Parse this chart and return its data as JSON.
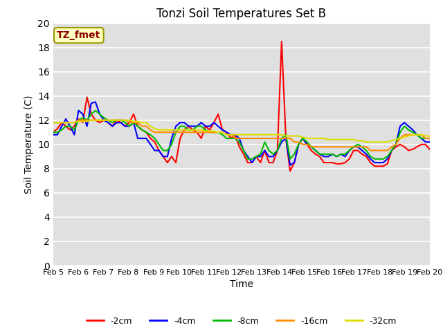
{
  "title": "Tonzi Soil Temperatures Set B",
  "xlabel": "Time",
  "ylabel": "Soil Temperature (C)",
  "ylim": [
    0,
    20
  ],
  "xlim": [
    0,
    15
  ],
  "xtick_labels": [
    "Feb 5",
    "Feb 6",
    "Feb 7",
    "Feb 8",
    "Feb 9",
    "Feb 10",
    "Feb 11",
    "Feb 12",
    "Feb 13",
    "Feb 14",
    "Feb 15",
    "Feb 16",
    "Feb 17",
    "Feb 18",
    "Feb 19",
    "Feb 20"
  ],
  "annotation_text": "TZ_fmet",
  "annotation_color": "#8B0000",
  "annotation_bg": "#FFFFC0",
  "bg_color": "#E0E0E0",
  "series": {
    "2cm": {
      "color": "#FF0000",
      "label": "-2cm",
      "values": [
        11.0,
        11.3,
        11.8,
        11.5,
        11.2,
        11.5,
        12.1,
        11.8,
        13.9,
        12.5,
        12.0,
        11.8,
        12.0,
        11.8,
        11.5,
        12.0,
        11.8,
        11.5,
        11.8,
        12.5,
        11.5,
        11.2,
        11.0,
        10.5,
        10.2,
        9.5,
        9.0,
        8.5,
        9.0,
        8.5,
        10.5,
        11.2,
        11.5,
        11.2,
        11.0,
        10.5,
        11.5,
        11.2,
        11.8,
        12.5,
        11.2,
        11.0,
        10.5,
        10.8,
        9.8,
        9.2,
        8.5,
        8.5,
        9.0,
        8.5,
        9.5,
        8.5,
        8.5,
        9.5,
        18.5,
        10.5,
        7.8,
        8.5,
        10.0,
        10.5,
        10.0,
        9.5,
        9.2,
        9.0,
        8.5,
        8.5,
        8.5,
        8.4,
        8.4,
        8.5,
        8.8,
        9.5,
        9.5,
        9.2,
        9.0,
        8.5,
        8.2,
        8.2,
        8.2,
        8.4,
        9.5,
        9.8,
        10.0,
        9.8,
        9.5,
        9.6,
        9.8,
        10.0,
        10.0,
        9.6
      ]
    },
    "4cm": {
      "color": "#0000FF",
      "label": "-4cm",
      "values": [
        10.8,
        10.8,
        11.5,
        12.1,
        11.5,
        10.8,
        12.8,
        12.5,
        11.5,
        13.4,
        13.5,
        12.5,
        12.0,
        11.8,
        11.5,
        11.8,
        11.8,
        11.5,
        11.5,
        11.8,
        10.5,
        10.5,
        10.5,
        10.0,
        9.5,
        9.5,
        9.0,
        9.0,
        10.5,
        11.5,
        11.8,
        11.8,
        11.5,
        11.5,
        11.5,
        11.8,
        11.5,
        11.5,
        11.8,
        11.5,
        11.2,
        11.0,
        10.8,
        10.8,
        10.5,
        9.5,
        9.0,
        8.5,
        9.0,
        9.0,
        9.5,
        9.0,
        9.0,
        9.5,
        10.2,
        10.5,
        8.3,
        8.5,
        10.0,
        10.5,
        10.0,
        9.8,
        9.5,
        9.2,
        9.0,
        9.0,
        9.2,
        9.0,
        9.2,
        9.0,
        9.5,
        9.8,
        9.8,
        9.5,
        9.2,
        8.8,
        8.5,
        8.5,
        8.5,
        8.8,
        9.5,
        10.0,
        11.5,
        11.8,
        11.5,
        11.2,
        10.8,
        10.5,
        10.2,
        10.2
      ]
    },
    "8cm": {
      "color": "#00BB00",
      "label": "-8cm",
      "values": [
        11.0,
        11.0,
        11.2,
        11.5,
        11.5,
        11.2,
        12.0,
        12.2,
        12.0,
        12.5,
        12.8,
        12.5,
        12.2,
        12.0,
        11.8,
        12.0,
        12.0,
        11.8,
        11.5,
        11.8,
        11.5,
        11.2,
        11.0,
        10.8,
        10.5,
        10.0,
        9.5,
        9.5,
        10.0,
        11.0,
        11.5,
        11.5,
        11.2,
        11.2,
        11.5,
        11.5,
        11.2,
        11.0,
        11.0,
        11.0,
        10.8,
        10.5,
        10.5,
        10.5,
        10.2,
        9.5,
        8.8,
        8.8,
        9.0,
        9.2,
        10.2,
        9.5,
        9.2,
        9.5,
        10.5,
        10.8,
        8.8,
        9.2,
        10.0,
        10.5,
        10.2,
        9.8,
        9.5,
        9.2,
        9.2,
        9.2,
        9.2,
        9.0,
        9.2,
        9.2,
        9.5,
        9.8,
        10.0,
        9.8,
        9.5,
        9.0,
        8.8,
        8.8,
        8.8,
        9.0,
        9.5,
        10.0,
        11.0,
        11.5,
        11.2,
        11.0,
        10.8,
        10.5,
        10.5,
        10.5
      ]
    },
    "16cm": {
      "color": "#FF8C00",
      "label": "-16cm",
      "values": [
        11.8,
        11.8,
        11.8,
        11.8,
        11.8,
        11.8,
        12.0,
        12.0,
        12.0,
        12.0,
        12.0,
        12.0,
        12.0,
        12.0,
        12.0,
        12.0,
        12.0,
        12.0,
        11.8,
        11.8,
        11.8,
        11.5,
        11.5,
        11.2,
        11.0,
        11.0,
        11.0,
        11.0,
        11.0,
        11.0,
        11.0,
        11.0,
        11.0,
        11.0,
        11.0,
        11.0,
        11.0,
        11.0,
        11.0,
        11.0,
        11.0,
        10.8,
        10.8,
        10.5,
        10.5,
        10.5,
        10.5,
        10.5,
        10.5,
        10.5,
        10.5,
        10.5,
        10.5,
        10.5,
        10.5,
        10.5,
        10.5,
        10.2,
        10.2,
        10.0,
        10.0,
        9.8,
        9.8,
        9.8,
        9.8,
        9.8,
        9.8,
        9.8,
        9.8,
        9.8,
        9.8,
        9.8,
        9.8,
        9.8,
        9.8,
        9.5,
        9.5,
        9.5,
        9.5,
        9.5,
        9.8,
        10.0,
        10.5,
        10.8,
        10.8,
        10.8,
        10.8,
        10.8,
        10.5,
        10.5
      ]
    },
    "32cm": {
      "color": "#DDDD00",
      "label": "-32cm",
      "values": [
        11.8,
        11.8,
        11.8,
        11.8,
        11.8,
        11.8,
        11.9,
        11.9,
        11.9,
        12.0,
        12.0,
        12.0,
        12.0,
        12.0,
        12.0,
        12.0,
        12.0,
        12.0,
        12.0,
        11.9,
        11.9,
        11.8,
        11.8,
        11.5,
        11.3,
        11.2,
        11.2,
        11.2,
        11.2,
        11.2,
        11.2,
        11.2,
        11.2,
        11.2,
        11.2,
        11.2,
        11.1,
        11.1,
        11.1,
        11.0,
        11.0,
        10.8,
        10.8,
        10.8,
        10.8,
        10.8,
        10.8,
        10.8,
        10.8,
        10.8,
        10.8,
        10.8,
        10.8,
        10.8,
        10.8,
        10.7,
        10.7,
        10.7,
        10.7,
        10.6,
        10.5,
        10.5,
        10.5,
        10.5,
        10.5,
        10.4,
        10.4,
        10.4,
        10.4,
        10.4,
        10.4,
        10.4,
        10.3,
        10.3,
        10.2,
        10.2,
        10.2,
        10.2,
        10.2,
        10.2,
        10.3,
        10.4,
        10.5,
        10.6,
        10.7,
        10.8,
        10.8,
        10.8,
        10.7,
        10.7
      ]
    }
  }
}
